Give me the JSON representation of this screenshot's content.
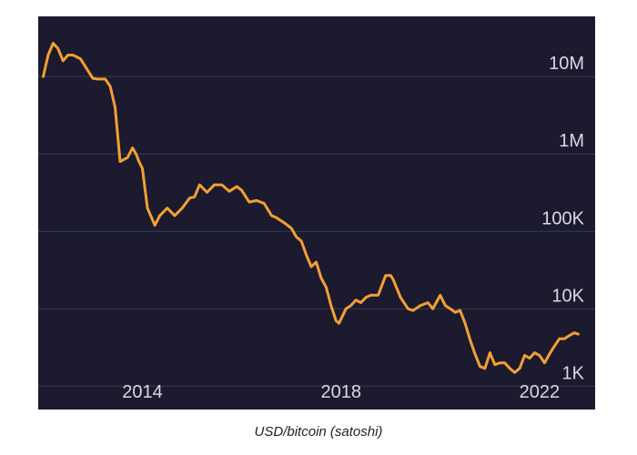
{
  "caption": "USD/bitcoin (satoshi)",
  "colors": {
    "background": "#1b1a2e",
    "line": "#f4a035",
    "grid": "#3a394d",
    "tick_text": "#d9d9e3"
  },
  "chart_data": {
    "type": "line",
    "title": "",
    "xlabel": "",
    "ylabel": "",
    "y_scale": "log",
    "grid": "horizontal",
    "xlim": [
      2011.9,
      2022.9
    ],
    "ylim": [
      500,
      60000000
    ],
    "x_ticks": [
      {
        "value": 2014,
        "label": "2014"
      },
      {
        "value": 2018,
        "label": "2018"
      },
      {
        "value": 2022,
        "label": "2022"
      }
    ],
    "y_ticks": [
      {
        "value": 1000,
        "label": "1K"
      },
      {
        "value": 10000,
        "label": "10K"
      },
      {
        "value": 100000,
        "label": "100K"
      },
      {
        "value": 1000000,
        "label": "1M"
      },
      {
        "value": 10000000,
        "label": "10M"
      }
    ],
    "series": [
      {
        "x": [
          2012.0,
          2012.1,
          2012.2,
          2012.3,
          2012.4,
          2012.5,
          2012.6,
          2012.75,
          2012.9,
          2013.0,
          2013.1,
          2013.25,
          2013.35,
          2013.45,
          2013.55,
          2013.7,
          2013.8,
          2013.87,
          2013.93,
          2014.0,
          2014.1,
          2014.25,
          2014.35,
          2014.5,
          2014.65,
          2014.8,
          2014.95,
          2015.05,
          2015.15,
          2015.3,
          2015.45,
          2015.6,
          2015.75,
          2015.9,
          2016.0,
          2016.15,
          2016.3,
          2016.45,
          2016.6,
          2016.7,
          2016.85,
          2017.0,
          2017.1,
          2017.2,
          2017.3,
          2017.4,
          2017.5,
          2017.6,
          2017.7,
          2017.8,
          2017.9,
          2017.96,
          2018.1,
          2018.2,
          2018.3,
          2018.4,
          2018.5,
          2018.6,
          2018.75,
          2018.9,
          2019.0,
          2019.05,
          2019.2,
          2019.35,
          2019.45,
          2019.6,
          2019.75,
          2019.85,
          2020.0,
          2020.1,
          2020.2,
          2020.3,
          2020.4,
          2020.5,
          2020.6,
          2020.7,
          2020.8,
          2020.9,
          2021.0,
          2021.1,
          2021.2,
          2021.3,
          2021.4,
          2021.5,
          2021.6,
          2021.7,
          2021.8,
          2021.9,
          2022.0,
          2022.1,
          2022.2,
          2022.3,
          2022.4,
          2022.5,
          2022.6,
          2022.7,
          2022.78
        ],
        "values": [
          10000000,
          19000000,
          27000000,
          23000000,
          16000000,
          19000000,
          19000000,
          17000000,
          12000000,
          9500000,
          9300000,
          9300000,
          7500000,
          4000000,
          800000,
          900000,
          1200000,
          1000000,
          800000,
          650000,
          200000,
          120000,
          160000,
          200000,
          160000,
          200000,
          270000,
          280000,
          400000,
          320000,
          400000,
          400000,
          330000,
          380000,
          340000,
          240000,
          250000,
          230000,
          160000,
          150000,
          130000,
          110000,
          85000,
          75000,
          50000,
          35000,
          40000,
          25000,
          19000,
          11000,
          7000,
          6500,
          10000,
          11000,
          13000,
          12000,
          14000,
          15000,
          15000,
          27000,
          27000,
          24000,
          14000,
          10000,
          9500,
          11000,
          12000,
          10000,
          15000,
          11000,
          10000,
          9000,
          9500,
          6500,
          4000,
          2600,
          1800,
          1700,
          2700,
          1900,
          2000,
          2000,
          1700,
          1500,
          1700,
          2500,
          2300,
          2700,
          2500,
          2000,
          2600,
          3300,
          4100,
          4100,
          4500,
          4900,
          4700
        ]
      }
    ]
  }
}
